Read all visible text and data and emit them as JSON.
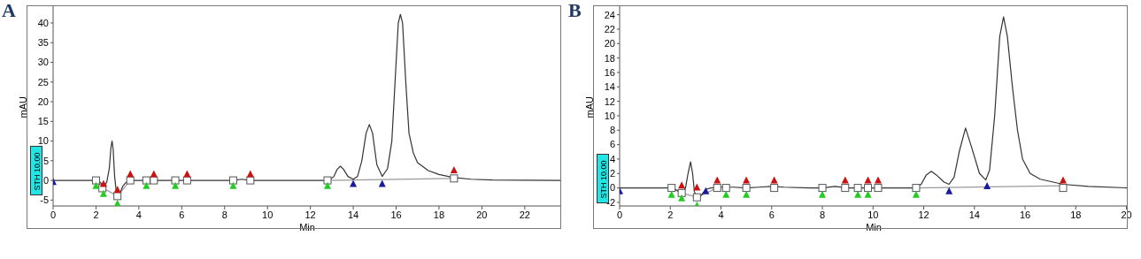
{
  "chart_data": [
    {
      "type": "line",
      "title": "A",
      "xlabel": "Min",
      "ylabel": "mAU",
      "annotations": [
        "STH 10.00"
      ],
      "xlim": [
        0,
        23.7
      ],
      "xticks": [
        0,
        2,
        4,
        6,
        8,
        10,
        12,
        14,
        16,
        18,
        20,
        22
      ],
      "ylim": [
        -6.5,
        44.5
      ],
      "yticks": [
        -5,
        0,
        5,
        10,
        15,
        20,
        25,
        30,
        35,
        40
      ],
      "series": [
        {
          "color": "#9a9a9a",
          "x": [
            2.0,
            2.35,
            3.0,
            3.6
          ],
          "values": [
            0,
            -2,
            -4,
            0
          ]
        },
        {
          "color": "#9a9a9a",
          "x": [
            12.8,
            18.7
          ],
          "values": [
            0,
            0.5
          ]
        },
        {
          "color": "#333333",
          "x": [
            0,
            1.9,
            2.0,
            2.2,
            2.35,
            2.5,
            2.62,
            2.7,
            2.75,
            2.8,
            2.87,
            2.95,
            3.0,
            3.1,
            3.25,
            3.4,
            3.6,
            4.35,
            5.7,
            8.4,
            8.8,
            9.2,
            12.6,
            12.9,
            13.1,
            13.25,
            13.4,
            13.55,
            13.75,
            14.0,
            14.2,
            14.4,
            14.6,
            14.75,
            14.9,
            15.1,
            15.35,
            15.6,
            15.8,
            15.95,
            16.1,
            16.2,
            16.3,
            16.45,
            16.6,
            16.8,
            17.0,
            17.5,
            18.0,
            18.7,
            19.5,
            20.5,
            23.7
          ],
          "values": [
            0,
            0,
            0,
            -0.5,
            -1.5,
            -0.5,
            3,
            8.5,
            10,
            8,
            1,
            -3,
            -4,
            -3.5,
            -1.5,
            -0.5,
            0,
            0,
            0,
            0,
            0.3,
            0,
            0,
            0.2,
            1,
            2.8,
            3.6,
            2.8,
            1,
            0.3,
            1,
            5,
            12,
            14.2,
            12,
            4,
            1,
            3,
            10,
            25,
            40,
            42.2,
            40,
            25,
            12,
            7,
            4.5,
            2.5,
            1.5,
            0.7,
            0.3,
            0.1,
            0
          ]
        },
        {
          "type": "scatter",
          "marker": "square",
          "color": "#555555",
          "x": [
            2.0,
            2.3,
            3.0,
            3.6,
            4.35,
            4.7,
            5.7,
            6.25,
            8.4,
            9.2,
            12.8,
            18.7
          ],
          "values": [
            0,
            -2,
            -4,
            0,
            0,
            0,
            0,
            0,
            0,
            0,
            0,
            0.5
          ]
        },
        {
          "type": "scatter",
          "marker": "triangle",
          "color": "#22cc22",
          "x": [
            2.0,
            2.35,
            3.0,
            4.35,
            5.7,
            8.4,
            12.8
          ],
          "values": [
            -1.5,
            -3.5,
            -6,
            -1.5,
            -1.5,
            -1.5,
            -1.5
          ]
        },
        {
          "type": "scatter",
          "marker": "triangle",
          "color": "#cc1111",
          "x": [
            2.35,
            3.0,
            3.6,
            4.7,
            6.25,
            9.2,
            18.7
          ],
          "values": [
            -1,
            -2.5,
            1.5,
            1.5,
            1.5,
            1.5,
            2.5
          ]
        },
        {
          "type": "scatter",
          "marker": "triangle",
          "color": "#1a1aa0",
          "x": [
            0,
            14.0,
            15.35
          ],
          "values": [
            -0.5,
            -1,
            -1
          ]
        }
      ]
    },
    {
      "type": "line",
      "title": "B",
      "xlabel": "Min",
      "ylabel": "mAU",
      "annotations": [
        "STH 10.00"
      ],
      "xlim": [
        0,
        20.05
      ],
      "xticks": [
        0,
        2,
        4,
        6,
        8,
        10,
        12,
        14,
        16,
        18,
        20
      ],
      "ylim": [
        -2.5,
        25.3
      ],
      "yticks": [
        -2,
        0,
        2,
        4,
        6,
        8,
        10,
        12,
        14,
        16,
        18,
        20,
        22,
        24
      ],
      "series": [
        {
          "color": "#9a9a9a",
          "x": [
            2.05,
            2.45,
            3.05,
            3.85
          ],
          "values": [
            0,
            -0.7,
            -1.3,
            0
          ]
        },
        {
          "color": "#9a9a9a",
          "x": [
            11.7,
            17.5
          ],
          "values": [
            0,
            0.3
          ]
        },
        {
          "color": "#333333",
          "x": [
            0,
            2.0,
            2.2,
            2.45,
            2.6,
            2.7,
            2.8,
            2.88,
            2.95,
            3.05,
            3.2,
            3.4,
            3.6,
            4.0,
            4.5,
            5.0,
            5.5,
            6.0,
            6.5,
            7.5,
            8.0,
            8.5,
            9.0,
            11.7,
            11.9,
            12.1,
            12.3,
            12.5,
            12.8,
            13.0,
            13.2,
            13.4,
            13.65,
            13.9,
            14.2,
            14.45,
            14.6,
            14.8,
            15.0,
            15.15,
            15.3,
            15.5,
            15.7,
            15.9,
            16.2,
            16.6,
            17.5,
            18.5,
            20.05
          ],
          "values": [
            0,
            0,
            -0.2,
            -0.8,
            0,
            2,
            3.6,
            2,
            -0.5,
            -1.5,
            -1.1,
            -0.2,
            0,
            0.1,
            0.1,
            0,
            0.1,
            0.2,
            0.1,
            0,
            0,
            0.2,
            0,
            0,
            0.5,
            1.8,
            2.3,
            1.8,
            0.8,
            0.5,
            1.5,
            5,
            8.3,
            5.5,
            2,
            1.1,
            2.5,
            10,
            21,
            23.7,
            21,
            14,
            8,
            4,
            2,
            1.2,
            0.5,
            0.2,
            0
          ]
        },
        {
          "type": "scatter",
          "marker": "square",
          "color": "#555555",
          "x": [
            2.05,
            2.45,
            3.05,
            3.85,
            4.2,
            5.0,
            6.1,
            8.0,
            8.9,
            9.4,
            9.8,
            10.2,
            11.7,
            17.5
          ],
          "values": [
            0,
            -0.7,
            -1.3,
            0,
            0,
            0,
            0,
            0,
            0,
            0,
            0,
            0,
            0,
            0
          ]
        },
        {
          "type": "scatter",
          "marker": "triangle",
          "color": "#22cc22",
          "x": [
            2.05,
            2.45,
            3.05,
            4.2,
            5.0,
            8.0,
            9.4,
            9.8,
            11.7
          ],
          "values": [
            -1,
            -1.5,
            -2.5,
            -1,
            -1,
            -1,
            -1,
            -1,
            -1
          ]
        },
        {
          "type": "scatter",
          "marker": "triangle",
          "color": "#cc1111",
          "x": [
            2.45,
            3.05,
            3.85,
            5.0,
            6.1,
            8.9,
            9.8,
            10.2,
            17.5
          ],
          "values": [
            0.3,
            0,
            1,
            1,
            1,
            1,
            1,
            1,
            1
          ]
        },
        {
          "type": "scatter",
          "marker": "triangle",
          "color": "#1a1aa0",
          "x": [
            0,
            3.4,
            13.0,
            14.5
          ],
          "values": [
            -0.5,
            -0.5,
            -0.5,
            0.2
          ]
        }
      ]
    }
  ]
}
